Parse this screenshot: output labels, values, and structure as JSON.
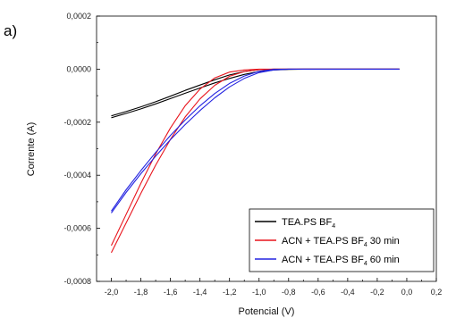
{
  "panel_label": "a)",
  "chart_data": {
    "type": "line",
    "title": "",
    "xlabel": "Potencial (V)",
    "ylabel": "Corrente (A)",
    "xlim": [
      -2.1,
      0.2
    ],
    "ylim": [
      -0.0008,
      0.0002
    ],
    "x_ticks": [
      -2.0,
      -1.8,
      -1.6,
      -1.4,
      -1.2,
      -1.0,
      -0.8,
      -0.6,
      -0.4,
      -0.2,
      0.0,
      0.2
    ],
    "x_tick_labels": [
      "-2,0",
      "-1,8",
      "-1,6",
      "-1,4",
      "-1,2",
      "-1,0",
      "-0,8",
      "-0,6",
      "-0,4",
      "-0,2",
      "0,0",
      "0,2"
    ],
    "y_ticks": [
      -0.0008,
      -0.0006,
      -0.0004,
      -0.0002,
      0.0,
      0.0002
    ],
    "y_tick_labels": [
      "-0,0008",
      "-0,0006",
      "-0,0004",
      "-0,0002",
      "0,0000",
      "0,0002"
    ],
    "legend_position": "bottom-right",
    "grid": false,
    "series": [
      {
        "name": "TEA.PS BF4",
        "legend_main": "TEA.PS BF",
        "legend_sub": "4",
        "legend_suffix": "",
        "color": "#000000",
        "sweeps": [
          {
            "x": [
              -2.0,
              -1.9,
              -1.8,
              -1.7,
              -1.6,
              -1.5,
              -1.4,
              -1.3,
              -1.2,
              -1.1,
              -1.0,
              -0.9,
              -0.8,
              -0.7,
              -0.6,
              -0.4,
              -0.2,
              -0.05
            ],
            "y": [
              -0.000183,
              -0.000167,
              -0.00015,
              -0.000131,
              -0.000111,
              -9.1e-05,
              -7.1e-05,
              -5.2e-05,
              -3.5e-05,
              -2e-05,
              -9e-06,
              -3e-06,
              -1e-06,
              0.0,
              0.0,
              0.0,
              0.0,
              0.0
            ]
          },
          {
            "x": [
              -2.0,
              -1.9,
              -1.8,
              -1.7,
              -1.6,
              -1.5,
              -1.4,
              -1.3,
              -1.2,
              -1.1,
              -1.0,
              -0.9,
              -0.8,
              -0.7,
              -0.6,
              -0.4,
              -0.2,
              -0.05
            ],
            "y": [
              -0.000176,
              -0.00016,
              -0.000142,
              -0.000123,
              -0.000102,
              -8e-05,
              -6e-05,
              -4e-05,
              -2.2e-05,
              -9e-06,
              -2e-06,
              0.0,
              0.0,
              0.0,
              0.0,
              0.0,
              0.0,
              0.0
            ]
          }
        ]
      },
      {
        "name": "ACN + TEA.PS BF4 30 min",
        "legend_main": "ACN + TEA.PS BF",
        "legend_sub": "4",
        "legend_suffix": " 30 min",
        "color": "#e8141c",
        "sweeps": [
          {
            "x": [
              -2.0,
              -1.9,
              -1.8,
              -1.7,
              -1.6,
              -1.5,
              -1.4,
              -1.3,
              -1.2,
              -1.1,
              -1.0,
              -0.9,
              -0.8,
              -0.7,
              -0.6,
              -0.4,
              -0.2,
              -0.05
            ],
            "y": [
              -0.000692,
              -0.00058,
              -0.000468,
              -0.000362,
              -0.000265,
              -0.00018,
              -0.000112,
              -6.1e-05,
              -2.7e-05,
              -9e-06,
              -2e-06,
              0.0,
              0.0,
              0.0,
              0.0,
              0.0,
              0.0,
              0.0
            ]
          },
          {
            "x": [
              -2.0,
              -1.9,
              -1.8,
              -1.7,
              -1.6,
              -1.5,
              -1.4,
              -1.3,
              -1.2,
              -1.1,
              -1.0,
              -0.9,
              -0.8,
              -0.7,
              -0.6,
              -0.4,
              -0.2,
              -0.05
            ],
            "y": [
              -0.000665,
              -0.000548,
              -0.00043,
              -0.00032,
              -0.000222,
              -0.000138,
              -7.5e-05,
              -3.3e-05,
              -1.1e-05,
              -3e-06,
              0.0,
              0.0,
              0.0,
              0.0,
              0.0,
              0.0,
              0.0,
              0.0
            ]
          }
        ]
      },
      {
        "name": "ACN + TEA.PS BF4 60 min",
        "legend_main": "ACN + TEA.PS BF",
        "legend_sub": "4",
        "legend_suffix": " 60 min",
        "color": "#2323e0",
        "sweeps": [
          {
            "x": [
              -2.0,
              -1.9,
              -1.8,
              -1.7,
              -1.6,
              -1.5,
              -1.4,
              -1.3,
              -1.2,
              -1.1,
              -1.0,
              -0.9,
              -0.8,
              -0.7,
              -0.6,
              -0.4,
              -0.2,
              -0.05
            ],
            "y": [
              -0.000542,
              -0.000465,
              -0.000394,
              -0.000328,
              -0.000266,
              -0.000209,
              -0.000156,
              -0.000108,
              -6.7e-05,
              -3.5e-05,
              -1.3e-05,
              -3e-06,
              0.0,
              0.0,
              0.0,
              0.0,
              0.0,
              0.0
            ]
          },
          {
            "x": [
              -2.0,
              -1.9,
              -1.8,
              -1.7,
              -1.6,
              -1.5,
              -1.4,
              -1.3,
              -1.2,
              -1.1,
              -1.0,
              -0.9,
              -0.8,
              -0.7,
              -0.6,
              -0.4,
              -0.2,
              -0.05
            ],
            "y": [
              -0.000535,
              -0.000455,
              -0.000382,
              -0.000314,
              -0.00025,
              -0.000192,
              -0.000138,
              -9.2e-05,
              -5.4e-05,
              -2.6e-05,
              -8e-06,
              -1e-06,
              0.0,
              0.0,
              0.0,
              0.0,
              0.0,
              0.0
            ]
          }
        ]
      }
    ]
  }
}
